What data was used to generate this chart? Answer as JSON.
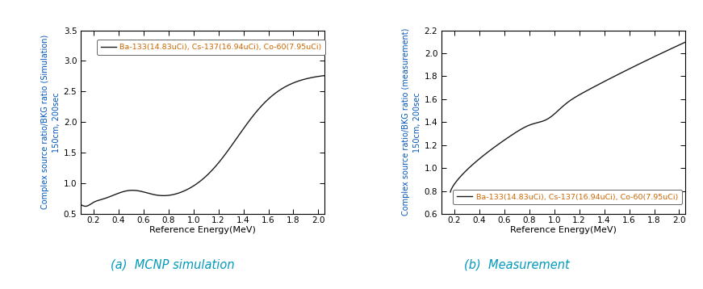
{
  "legend_label": "Ba-133(14.83uCi), Cs-137(16.94uCi), Co-60(7.95uCi)",
  "xlabel": "Reference Energy(MeV)",
  "ylabel_left": "Complex source ratio/BKG ratio (Simulation)\n150cm, 200sec",
  "ylabel_right": "Complex source ratio/BKG ratio (measurement)\n150cm, 200sec",
  "caption_left": "(a)  MCNP simulation",
  "caption_right": "(b)  Measurement",
  "xlim": [
    0.1,
    2.05
  ],
  "ylim_left": [
    0.5,
    3.5
  ],
  "ylim_right": [
    0.6,
    2.2
  ],
  "xticks": [
    0.2,
    0.4,
    0.6,
    0.8,
    1.0,
    1.2,
    1.4,
    1.6,
    1.8,
    2.0
  ],
  "yticks_left": [
    0.5,
    1.0,
    1.5,
    2.0,
    2.5,
    3.0,
    3.5
  ],
  "yticks_right": [
    0.6,
    0.8,
    1.0,
    1.2,
    1.4,
    1.6,
    1.8,
    2.0,
    2.2
  ],
  "line_color": "#1a1a1a",
  "legend_text_color": "#cc6600",
  "ylabel_color": "#0055bb",
  "caption_color": "#0099bb",
  "background_color": "#ffffff"
}
